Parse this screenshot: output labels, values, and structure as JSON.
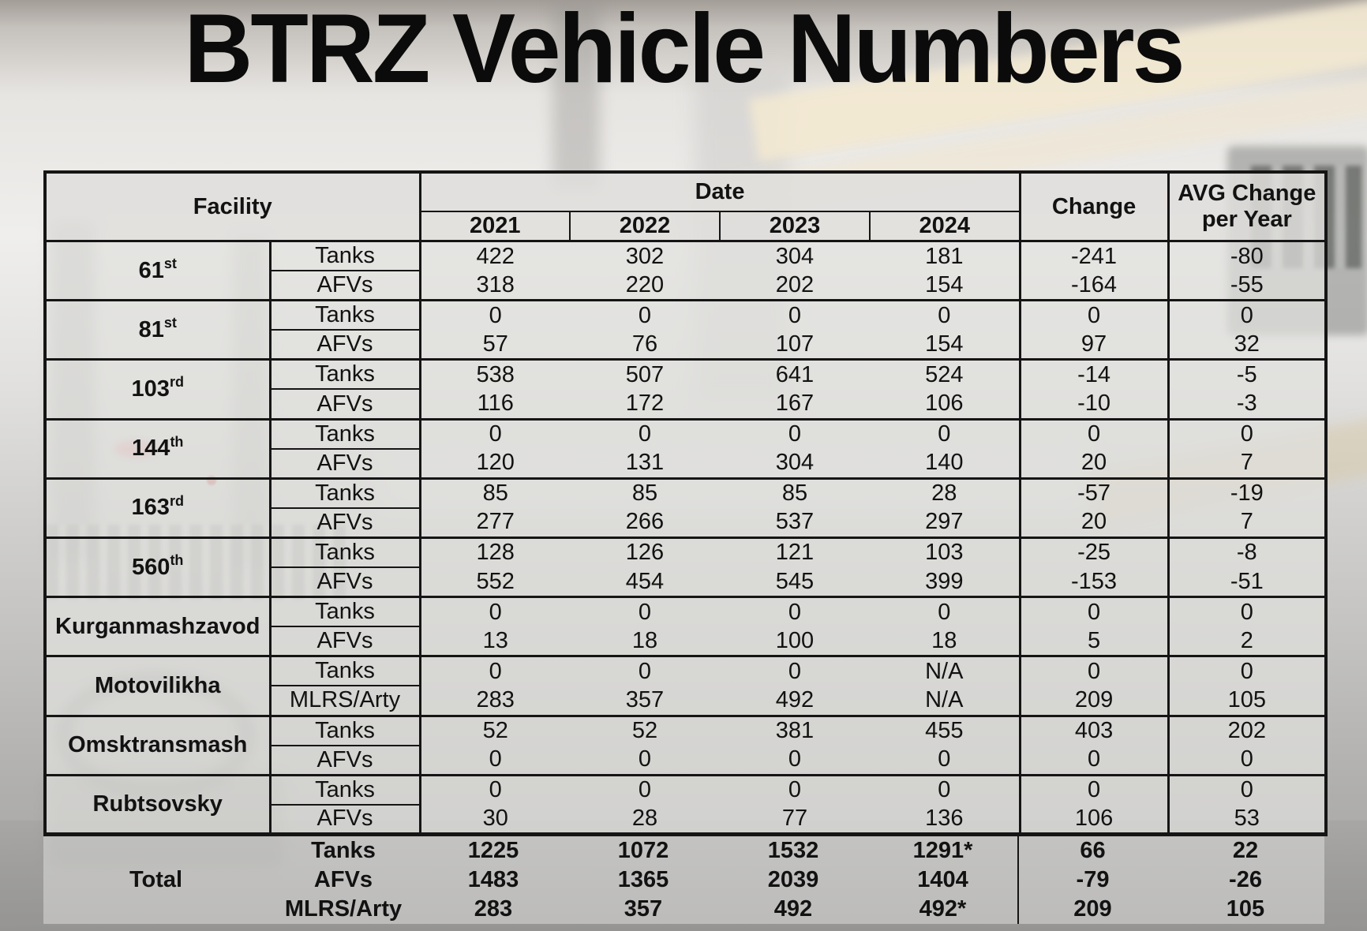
{
  "title": "BTRZ Vehicle Numbers",
  "table": {
    "header": {
      "facility": "Facility",
      "date": "Date",
      "years": [
        "2021",
        "2022",
        "2023",
        "2024"
      ],
      "change": "Change",
      "avg_change": "AVG Change per Year"
    },
    "facilities": [
      {
        "name": "61",
        "ordinal": "st",
        "rows": [
          {
            "type": "Tanks",
            "values": [
              "422",
              "302",
              "304",
              "181"
            ],
            "change": "-241",
            "avg": "-80"
          },
          {
            "type": "AFVs",
            "values": [
              "318",
              "220",
              "202",
              "154"
            ],
            "change": "-164",
            "avg": "-55"
          }
        ]
      },
      {
        "name": "81",
        "ordinal": "st",
        "rows": [
          {
            "type": "Tanks",
            "values": [
              "0",
              "0",
              "0",
              "0"
            ],
            "change": "0",
            "avg": "0"
          },
          {
            "type": "AFVs",
            "values": [
              "57",
              "76",
              "107",
              "154"
            ],
            "change": "97",
            "avg": "32"
          }
        ]
      },
      {
        "name": "103",
        "ordinal": "rd",
        "rows": [
          {
            "type": "Tanks",
            "values": [
              "538",
              "507",
              "641",
              "524"
            ],
            "change": "-14",
            "avg": "-5"
          },
          {
            "type": "AFVs",
            "values": [
              "116",
              "172",
              "167",
              "106"
            ],
            "change": "-10",
            "avg": "-3"
          }
        ]
      },
      {
        "name": "144",
        "ordinal": "th",
        "rows": [
          {
            "type": "Tanks",
            "values": [
              "0",
              "0",
              "0",
              "0"
            ],
            "change": "0",
            "avg": "0"
          },
          {
            "type": "AFVs",
            "values": [
              "120",
              "131",
              "304",
              "140"
            ],
            "change": "20",
            "avg": "7"
          }
        ]
      },
      {
        "name": "163",
        "ordinal": "rd",
        "rows": [
          {
            "type": "Tanks",
            "values": [
              "85",
              "85",
              "85",
              "28"
            ],
            "change": "-57",
            "avg": "-19"
          },
          {
            "type": "AFVs",
            "values": [
              "277",
              "266",
              "537",
              "297"
            ],
            "change": "20",
            "avg": "7"
          }
        ]
      },
      {
        "name": "560",
        "ordinal": "th",
        "rows": [
          {
            "type": "Tanks",
            "values": [
              "128",
              "126",
              "121",
              "103"
            ],
            "change": "-25",
            "avg": "-8"
          },
          {
            "type": "AFVs",
            "values": [
              "552",
              "454",
              "545",
              "399"
            ],
            "change": "-153",
            "avg": "-51"
          }
        ]
      },
      {
        "name": "Kurganmashzavod",
        "ordinal": "",
        "rows": [
          {
            "type": "Tanks",
            "values": [
              "0",
              "0",
              "0",
              "0"
            ],
            "change": "0",
            "avg": "0"
          },
          {
            "type": "AFVs",
            "values": [
              "13",
              "18",
              "100",
              "18"
            ],
            "change": "5",
            "avg": "2"
          }
        ]
      },
      {
        "name": "Motovilikha",
        "ordinal": "",
        "rows": [
          {
            "type": "Tanks",
            "values": [
              "0",
              "0",
              "0",
              "N/A"
            ],
            "change": "0",
            "avg": "0"
          },
          {
            "type": "MLRS/Arty",
            "values": [
              "283",
              "357",
              "492",
              "N/A"
            ],
            "change": "209",
            "avg": "105"
          }
        ]
      },
      {
        "name": "Omsktransmash",
        "ordinal": "",
        "rows": [
          {
            "type": "Tanks",
            "values": [
              "52",
              "52",
              "381",
              "455"
            ],
            "change": "403",
            "avg": "202"
          },
          {
            "type": "AFVs",
            "values": [
              "0",
              "0",
              "0",
              "0"
            ],
            "change": "0",
            "avg": "0"
          }
        ]
      },
      {
        "name": "Rubtsovsky",
        "ordinal": "",
        "rows": [
          {
            "type": "Tanks",
            "values": [
              "0",
              "0",
              "0",
              "0"
            ],
            "change": "0",
            "avg": "0"
          },
          {
            "type": "AFVs",
            "values": [
              "30",
              "28",
              "77",
              "136"
            ],
            "change": "106",
            "avg": "53"
          }
        ]
      }
    ],
    "total": {
      "label": "Total",
      "rows": [
        {
          "type": "Tanks",
          "values": [
            "1225",
            "1072",
            "1532",
            "1291*"
          ],
          "change": "66",
          "avg": "22"
        },
        {
          "type": "AFVs",
          "values": [
            "1483",
            "1365",
            "2039",
            "1404"
          ],
          "change": "-79",
          "avg": "-26"
        },
        {
          "type": "MLRS/Arty",
          "values": [
            "283",
            "357",
            "492",
            "492*"
          ],
          "change": "209",
          "avg": "105"
        }
      ]
    }
  }
}
